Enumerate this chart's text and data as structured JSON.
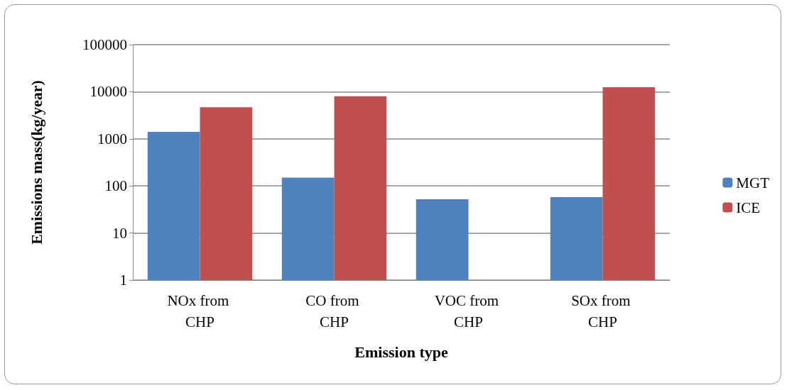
{
  "chart_data": {
    "type": "bar",
    "xlabel": "Emission type",
    "ylabel": "Emissions mass(kg/year)",
    "categories": [
      "NOx from CHP",
      "CO from CHP",
      "VOC from CHP",
      "SOx from CHP"
    ],
    "series": [
      {
        "name": "MGT",
        "color": "#4f81bd",
        "values": [
          1400,
          150,
          52,
          58
        ]
      },
      {
        "name": "ICE",
        "color": "#c0504d",
        "values": [
          4700,
          8000,
          null,
          12500
        ]
      }
    ],
    "log": true,
    "ylim": [
      1,
      100000
    ],
    "yticks": [
      1,
      10,
      100,
      1000,
      10000,
      100000
    ],
    "grid": "y",
    "legend": "right"
  }
}
